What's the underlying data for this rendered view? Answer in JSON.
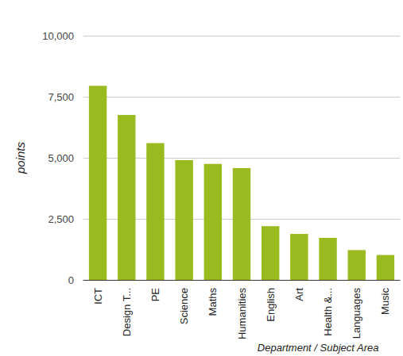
{
  "chart_data": {
    "type": "bar",
    "categories": [
      "ICT",
      "Design T...",
      "PE",
      "Science",
      "Maths",
      "Humanities",
      "English",
      "Art",
      "Health &...",
      "Languages",
      "Music"
    ],
    "values": [
      7950,
      6750,
      5600,
      4900,
      4750,
      4580,
      2200,
      1880,
      1720,
      1220,
      1020
    ],
    "color": "#99bb1f",
    "x_label": "Department / Subject Area",
    "y_label": "points",
    "ylim": [
      0,
      10000
    ],
    "yticks": [
      0,
      {
        "value": 2500,
        "label": "2,500"
      },
      {
        "value": 5000,
        "label": "5,000"
      },
      {
        "value": 7500,
        "label": "7,500"
      },
      {
        "value": 10000,
        "label": "10,000"
      }
    ],
    "grid": true
  }
}
